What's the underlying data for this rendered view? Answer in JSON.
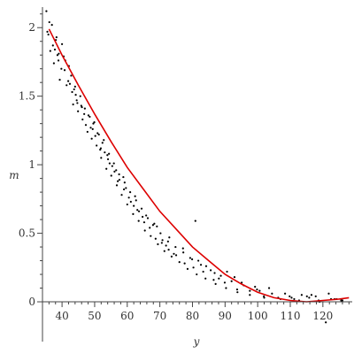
{
  "chart_data": {
    "type": "scatter",
    "xlabel": "y",
    "ylabel": "m",
    "xlim": [
      34,
      129
    ],
    "ylim": [
      -0.2,
      2.15
    ],
    "x_ticks": [
      40,
      50,
      60,
      70,
      80,
      90,
      100,
      110,
      120
    ],
    "y_ticks": [
      0,
      0.5,
      1,
      1.5,
      2
    ],
    "x_tick_labels": [
      "40",
      "50",
      "60",
      "70",
      "80",
      "90",
      "100",
      "110",
      "120"
    ],
    "y_tick_labels": [
      "0",
      "0.5",
      "1",
      "1.5",
      "2"
    ],
    "grid": false,
    "series": [
      {
        "kind": "points",
        "color": "#000000",
        "x": [
          35.2,
          35.8,
          36.4,
          36.9,
          37.5,
          38.1,
          38.6,
          39.3,
          40.0,
          40.8,
          41.4,
          42.1,
          42.8,
          43.4,
          44.0,
          44.9,
          45.6,
          46.3,
          47.0,
          47.8,
          48.5,
          49.1,
          49.9,
          50.6,
          51.3,
          52.0,
          52.8,
          53.6,
          54.4,
          55.1,
          55.9,
          56.8,
          57.5,
          58.3,
          59.2,
          60.0,
          60.9,
          61.8,
          62.7,
          63.5,
          64.4,
          65.4,
          66.3,
          67.2,
          68.3,
          69.4,
          70.2,
          71.4,
          72.5,
          73.6,
          74.8,
          76.0,
          77.2,
          78.5,
          79.9,
          81.3,
          82.6,
          84.0,
          85.6,
          87.1,
          88.7,
          90.3,
          92.0,
          93.8,
          95.7,
          97.6,
          99.8,
          102.0,
          104.4,
          107.0,
          109.8,
          112.7,
          115.8,
          119.0,
          122.5,
          126.0,
          36.1,
          37.2,
          38.9,
          40.5,
          41.9,
          43.1,
          44.5,
          45.9,
          47.3,
          48.8,
          50.2,
          51.7,
          53.1,
          54.6,
          56.1,
          57.6,
          59.0,
          60.5,
          62.0,
          63.6,
          65.2,
          66.9,
          68.7,
          70.6,
          72.7,
          75.0,
          77.6,
          80.3,
          83.3,
          86.5,
          89.9,
          93.7,
          97.6,
          101.9,
          106.3,
          111.2,
          116.5,
          121.8,
          125.6,
          35.5,
          37.8,
          39.8,
          42.4,
          44.7,
          46.8,
          49.4,
          51.9,
          54.1,
          56.6,
          59.6,
          62.4,
          65.8,
          69.1,
          72.9,
          77.1,
          81.8,
          86.8,
          92.9,
          99.2,
          108.4,
          117.8,
          124.2,
          41.0,
          46.1,
          50.9,
          55.4,
          61.1,
          67.9,
          74.3,
          84.2,
          95.1,
          113.5,
          120.9,
          38.3,
          43.7,
          48.1,
          52.4,
          57.1,
          63.1,
          70.8,
          79.3,
          88.1,
          100.6,
          110.4,
          118.7,
          39.0,
          44.2,
          49.6,
          53.9,
          58.8,
          64.7,
          71.9,
          80.9,
          90.6,
          103.5,
          115.1,
          123.6
        ],
        "y": [
          2.12,
          1.95,
          1.83,
          2.02,
          1.74,
          1.91,
          1.8,
          1.62,
          1.88,
          1.69,
          1.58,
          1.72,
          1.65,
          1.44,
          1.57,
          1.39,
          1.5,
          1.33,
          1.41,
          1.24,
          1.35,
          1.19,
          1.31,
          1.14,
          1.22,
          1.05,
          1.18,
          0.97,
          1.08,
          0.92,
          1.01,
          0.85,
          0.93,
          0.78,
          0.87,
          0.71,
          0.8,
          0.64,
          0.74,
          0.59,
          0.68,
          0.52,
          0.61,
          0.48,
          0.57,
          0.42,
          0.5,
          0.37,
          0.44,
          0.33,
          0.4,
          0.29,
          0.36,
          0.24,
          0.31,
          0.2,
          0.27,
          0.17,
          0.23,
          0.13,
          0.19,
          0.1,
          0.15,
          0.07,
          0.12,
          0.05,
          0.09,
          0.03,
          0.06,
          0.02,
          0.04,
          0.01,
          0.03,
          0.0,
          0.02,
          0.01,
          2.04,
          1.87,
          1.76,
          1.79,
          1.61,
          1.53,
          1.47,
          1.43,
          1.29,
          1.27,
          1.21,
          1.11,
          1.09,
          1.01,
          0.95,
          0.89,
          0.82,
          0.76,
          0.7,
          0.66,
          0.58,
          0.54,
          0.46,
          0.43,
          0.38,
          0.34,
          0.28,
          0.25,
          0.22,
          0.16,
          0.14,
          0.09,
          0.08,
          0.04,
          0.03,
          0.02,
          0.05,
          0.06,
          0.01,
          1.97,
          1.84,
          1.7,
          1.59,
          1.45,
          1.37,
          1.26,
          1.12,
          1.04,
          0.96,
          0.83,
          0.77,
          0.63,
          0.55,
          0.47,
          0.39,
          0.3,
          0.21,
          0.18,
          0.11,
          0.06,
          0.04,
          0.02,
          1.76,
          1.42,
          1.23,
          0.99,
          0.73,
          0.56,
          0.35,
          0.26,
          0.14,
          0.05,
          -0.15,
          1.93,
          1.55,
          1.36,
          1.16,
          0.88,
          0.67,
          0.45,
          0.32,
          0.17,
          0.08,
          0.03,
          0.01,
          1.81,
          1.51,
          1.3,
          1.07,
          0.91,
          0.62,
          0.41,
          0.59,
          0.22,
          0.1,
          0.04,
          0.02
        ]
      },
      {
        "kind": "fit-curve",
        "color": "#dd0000",
        "x": [
          36,
          40,
          45,
          50,
          55,
          60,
          65,
          70,
          75,
          80,
          85,
          90,
          95,
          100,
          105,
          110,
          115,
          120,
          125,
          128
        ],
        "y": [
          1.99,
          1.8,
          1.58,
          1.37,
          1.17,
          0.98,
          0.82,
          0.66,
          0.53,
          0.4,
          0.3,
          0.2,
          0.13,
          0.07,
          0.03,
          0.01,
          0.0,
          0.01,
          0.02,
          0.03
        ]
      }
    ]
  }
}
